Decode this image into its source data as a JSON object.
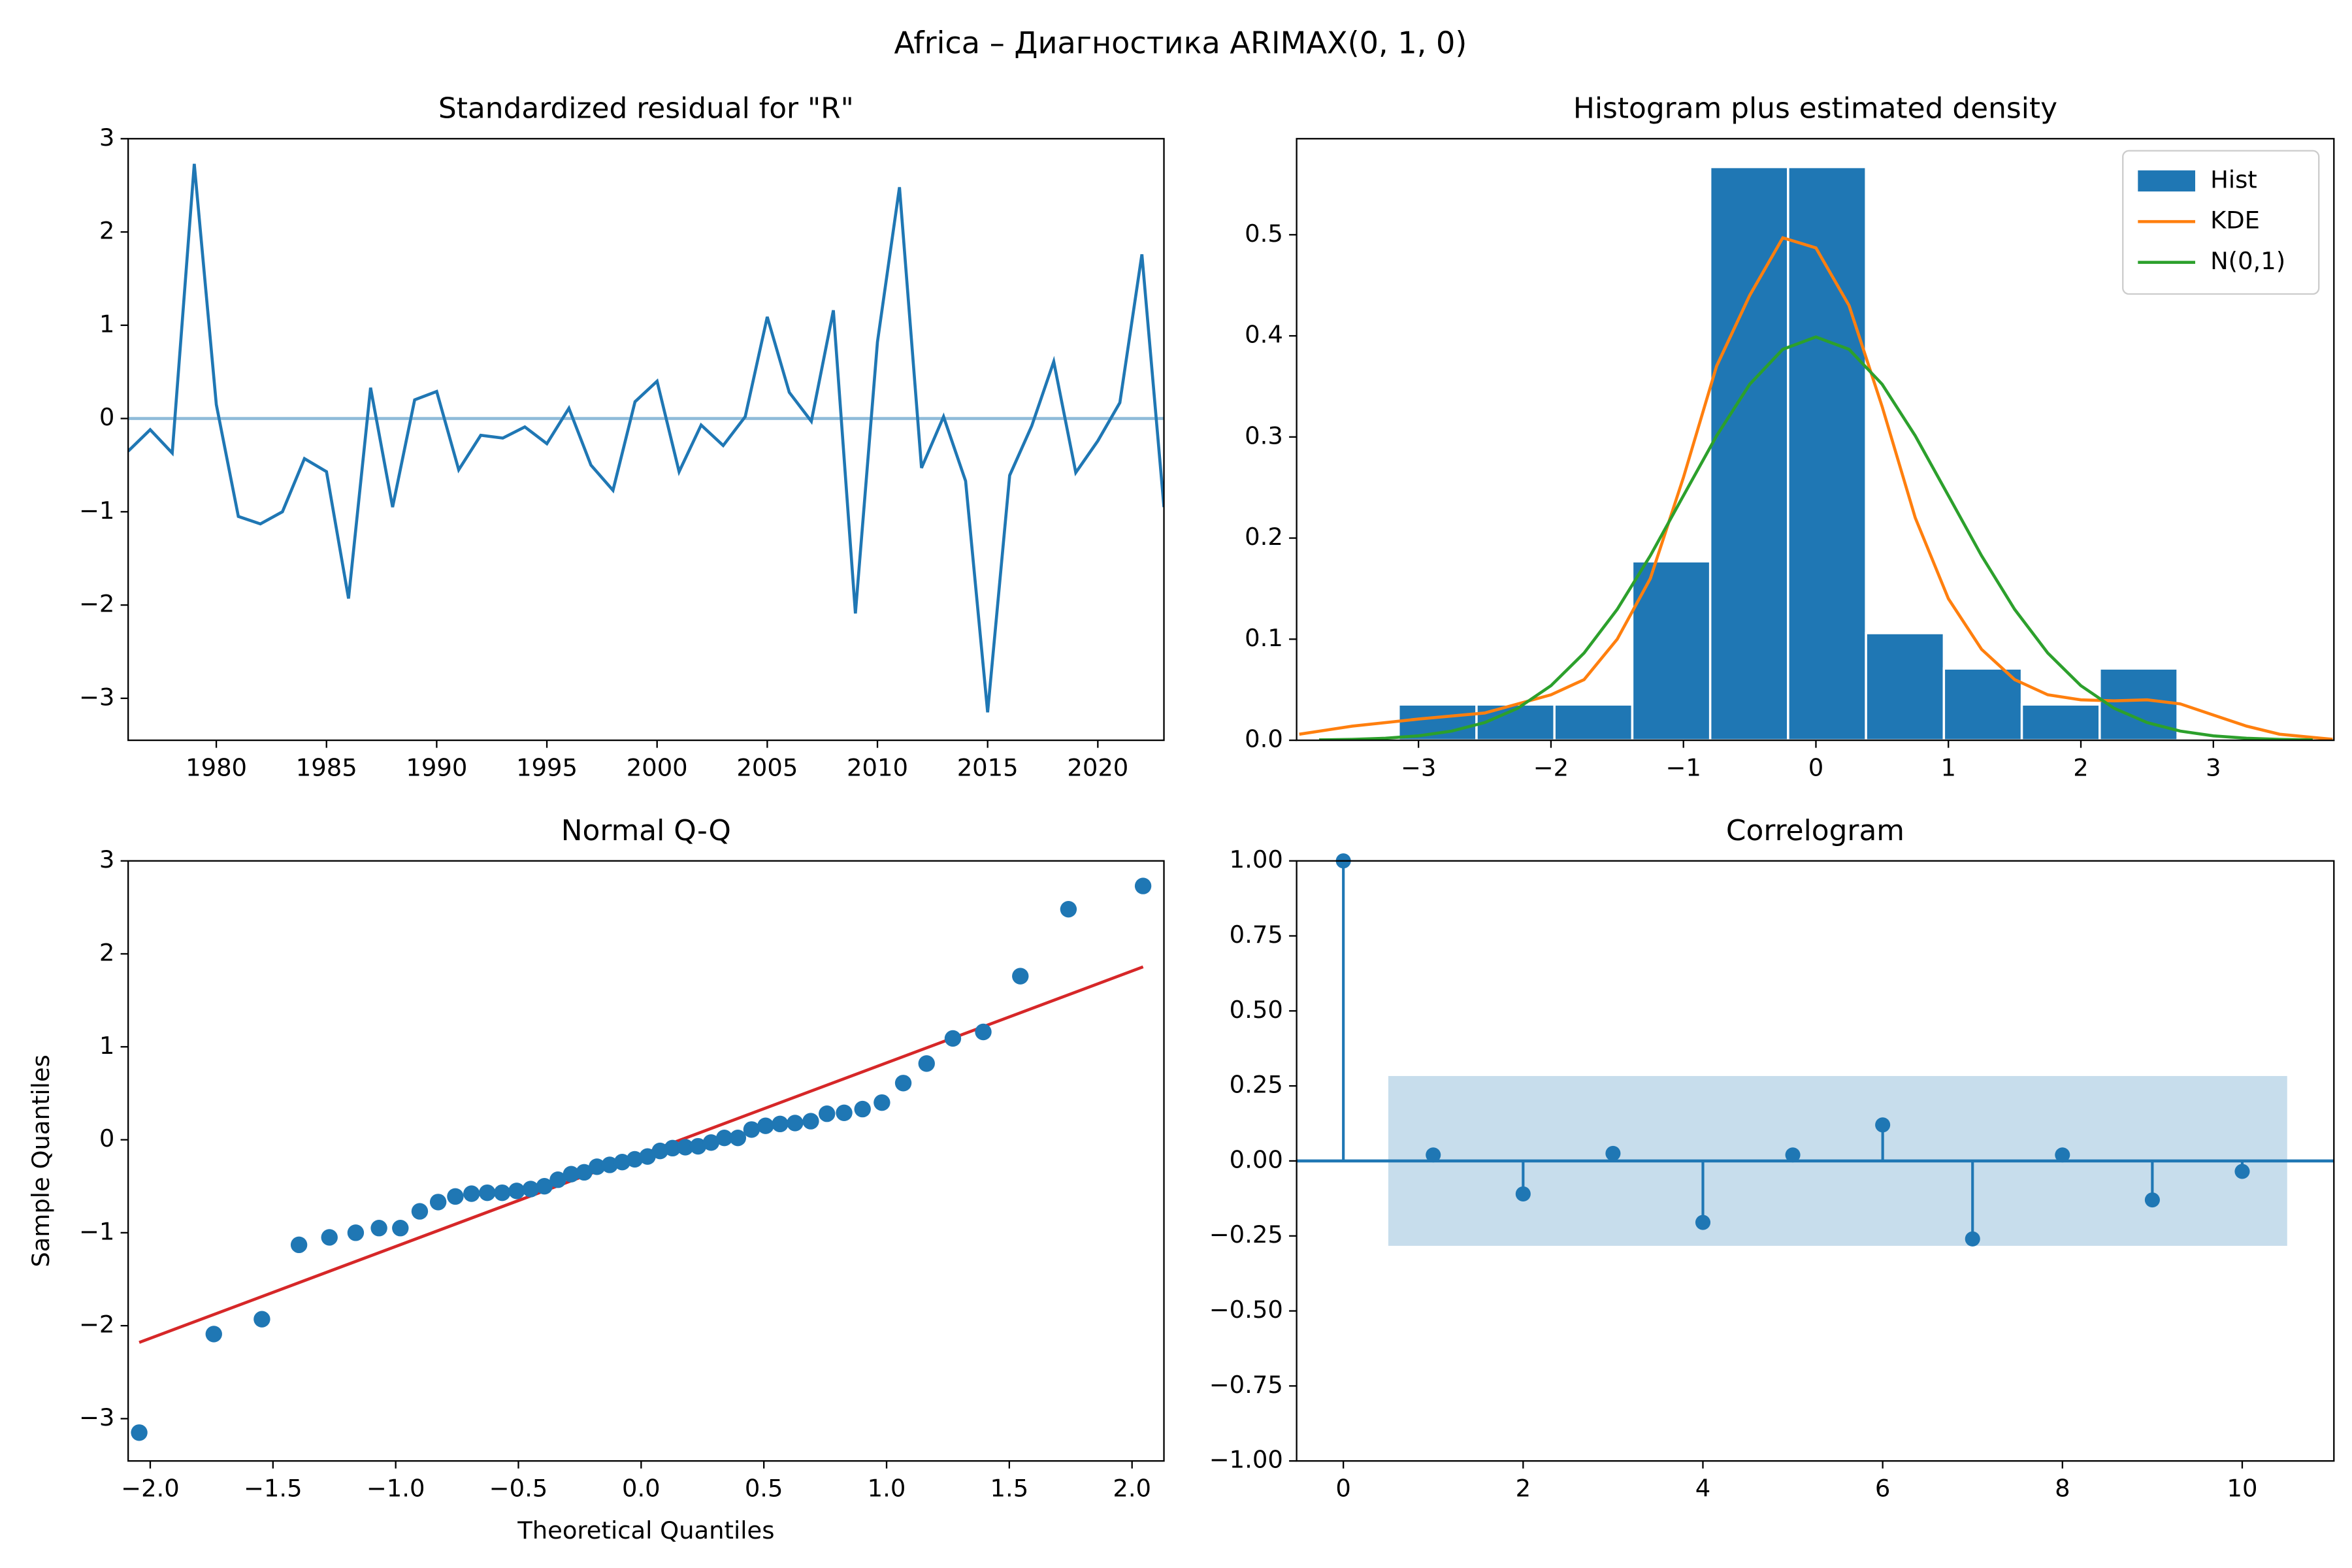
{
  "suptitle": "Africa – Диагностика ARIMAX(0, 1, 0)",
  "chart_data": [
    {
      "type": "line",
      "title": "Standardized residual for \"R\"",
      "x": [
        1976,
        1977,
        1978,
        1979,
        1980,
        1981,
        1982,
        1983,
        1984,
        1985,
        1986,
        1987,
        1988,
        1989,
        1990,
        1991,
        1992,
        1993,
        1994,
        1995,
        1996,
        1997,
        1998,
        1999,
        2000,
        2001,
        2002,
        2003,
        2004,
        2005,
        2006,
        2007,
        2008,
        2009,
        2010,
        2011,
        2012,
        2013,
        2014,
        2015,
        2016,
        2017,
        2018,
        2019,
        2020,
        2021,
        2022,
        2023
      ],
      "values": [
        -0.35,
        -0.12,
        -0.37,
        2.73,
        0.15,
        -1.05,
        -1.13,
        -1.0,
        -0.43,
        -0.57,
        -1.93,
        0.33,
        -0.95,
        0.2,
        0.29,
        -0.55,
        -0.18,
        -0.21,
        -0.09,
        -0.27,
        0.11,
        -0.5,
        -0.77,
        0.18,
        0.4,
        -0.57,
        -0.07,
        -0.29,
        0.02,
        1.09,
        0.28,
        -0.03,
        1.16,
        -2.09,
        0.82,
        2.48,
        -0.53,
        0.02,
        -0.67,
        -3.15,
        -0.61,
        -0.08,
        0.61,
        -0.58,
        -0.24,
        0.17,
        1.76,
        -0.95
      ],
      "color": "#1f77b4",
      "reference_line": 0,
      "xlim": [
        1976,
        2023
      ],
      "xticks": [
        1980,
        1985,
        1990,
        1995,
        2000,
        2005,
        2010,
        2015,
        2020
      ],
      "ylim": [
        -3.45,
        3.0
      ],
      "yticks": [
        {
          "value": -3,
          "label": "−3"
        },
        {
          "value": -2,
          "label": "−2"
        },
        {
          "value": -1,
          "label": "−1"
        },
        0,
        1,
        2,
        3
      ]
    },
    {
      "type": "histogram",
      "title": "Histogram plus estimated density",
      "name": "Hist",
      "bins": [
        -3.15,
        -2.562,
        -1.974,
        -1.386,
        -0.798,
        -0.21,
        0.378,
        0.966,
        1.554,
        2.142,
        2.73
      ],
      "values": [
        0.0354,
        0.0354,
        0.0354,
        0.177,
        0.567,
        0.567,
        0.106,
        0.071,
        0.0354,
        0.071
      ],
      "color": "#1f77b4",
      "series": [
        {
          "name": "KDE",
          "color": "#ff7f0e",
          "x": [
            -3.9,
            -3.5,
            -3,
            -2.5,
            -2,
            -1.75,
            -1.5,
            -1.25,
            -1,
            -0.75,
            -0.5,
            -0.25,
            0,
            0.25,
            0.5,
            0.75,
            1,
            1.25,
            1.5,
            1.75,
            2,
            2.25,
            2.5,
            2.75,
            3,
            3.25,
            3.5,
            3.9
          ],
          "values": [
            0.006,
            0.014,
            0.021,
            0.027,
            0.045,
            0.06,
            0.1,
            0.16,
            0.26,
            0.37,
            0.44,
            0.497,
            0.487,
            0.43,
            0.33,
            0.22,
            0.14,
            0.09,
            0.06,
            0.045,
            0.04,
            0.039,
            0.04,
            0.036,
            0.025,
            0.014,
            0.006,
            0.001
          ]
        },
        {
          "name": "N(0,1)",
          "color": "#2ca02c",
          "x": [
            -3.75,
            -3.5,
            -3.25,
            -3,
            -2.75,
            -2.5,
            -2.25,
            -2,
            -1.75,
            -1.5,
            -1.25,
            -1,
            -0.75,
            -0.5,
            -0.25,
            0,
            0.25,
            0.5,
            0.75,
            1,
            1.25,
            1.5,
            1.75,
            2,
            2.25,
            2.5,
            2.75,
            3,
            3.25,
            3.5,
            3.75
          ],
          "values": [
            0.0004,
            0.0009,
            0.002,
            0.0044,
            0.0091,
            0.0175,
            0.0317,
            0.054,
            0.0863,
            0.1295,
            0.1826,
            0.242,
            0.3011,
            0.3521,
            0.3867,
            0.3989,
            0.3867,
            0.3521,
            0.3011,
            0.242,
            0.1826,
            0.1295,
            0.0863,
            0.054,
            0.0317,
            0.0175,
            0.0091,
            0.0044,
            0.002,
            0.0009,
            0.0004
          ]
        }
      ],
      "legend": "upper right",
      "xlim": [
        -3.92,
        3.91
      ],
      "xticks": [
        {
          "value": -3,
          "label": "−3"
        },
        {
          "value": -2,
          "label": "−2"
        },
        {
          "value": -1,
          "label": "−1"
        },
        0,
        1,
        2,
        3
      ],
      "ylim": [
        0,
        0.595
      ],
      "yticks": [
        {
          "value": 0,
          "label": "0.0"
        },
        0.1,
        0.2,
        0.3,
        0.4,
        0.5
      ]
    },
    {
      "type": "scatter",
      "title": "Normal Q-Q",
      "xlabel": "Theoretical Quantiles",
      "ylabel": "Sample Quantiles",
      "x": [
        -2.045,
        -1.741,
        -1.545,
        -1.394,
        -1.27,
        -1.163,
        -1.068,
        -0.981,
        -0.902,
        -0.827,
        -0.757,
        -0.691,
        -0.627,
        -0.566,
        -0.507,
        -0.45,
        -0.394,
        -0.339,
        -0.285,
        -0.232,
        -0.18,
        -0.128,
        -0.077,
        -0.026,
        0.026,
        0.077,
        0.128,
        0.18,
        0.232,
        0.285,
        0.339,
        0.394,
        0.45,
        0.507,
        0.566,
        0.627,
        0.691,
        0.757,
        0.827,
        0.902,
        0.981,
        1.068,
        1.163,
        1.27,
        1.394,
        1.545,
        1.741,
        2.045
      ],
      "values": [
        -3.15,
        -2.09,
        -1.93,
        -1.13,
        -1.05,
        -1.0,
        -0.95,
        -0.95,
        -0.77,
        -0.67,
        -0.61,
        -0.58,
        -0.57,
        -0.57,
        -0.55,
        -0.53,
        -0.5,
        -0.43,
        -0.37,
        -0.35,
        -0.29,
        -0.27,
        -0.24,
        -0.21,
        -0.18,
        -0.12,
        -0.09,
        -0.08,
        -0.07,
        -0.03,
        0.02,
        0.02,
        0.11,
        0.15,
        0.17,
        0.18,
        0.2,
        0.28,
        0.29,
        0.33,
        0.4,
        0.61,
        0.82,
        1.09,
        1.16,
        1.76,
        2.48,
        2.73
      ],
      "color": "#1f77b4",
      "fit_line": {
        "x": [
          -2.045,
          2.045
        ],
        "values": [
          -2.18,
          1.86
        ],
        "color": "#d62728"
      },
      "xlim": [
        -2.09,
        2.13
      ],
      "xticks": [
        {
          "value": -2,
          "label": "−2.0"
        },
        {
          "value": -1.5,
          "label": "−1.5"
        },
        {
          "value": -1,
          "label": "−1.0"
        },
        {
          "value": -0.5,
          "label": "−0.5"
        },
        {
          "value": 0,
          "label": "0.0"
        },
        0.5,
        {
          "value": 1,
          "label": "1.0"
        },
        1.5,
        {
          "value": 2,
          "label": "2.0"
        }
      ],
      "ylim": [
        -3.455,
        3.0
      ],
      "yticks": [
        {
          "value": -3,
          "label": "−3"
        },
        {
          "value": -2,
          "label": "−2"
        },
        {
          "value": -1,
          "label": "−1"
        },
        0,
        1,
        2,
        3
      ]
    },
    {
      "type": "stem",
      "title": "Correlogram",
      "x": [
        0,
        1,
        2,
        3,
        4,
        5,
        6,
        7,
        8,
        9,
        10
      ],
      "values": [
        1.0,
        0.02,
        -0.11,
        0.025,
        -0.205,
        0.02,
        0.12,
        -0.26,
        0.02,
        -0.13,
        -0.035
      ],
      "color": "#1f77b4",
      "confint": [
        -0.283,
        0.283
      ],
      "confint_x": [
        0.5,
        10.5
      ],
      "xlim": [
        -0.52,
        11.02
      ],
      "xticks": [
        0,
        2,
        4,
        6,
        8,
        10
      ],
      "ylim": [
        -1,
        1
      ],
      "yticks": [
        {
          "value": -1,
          "label": "−1.00"
        },
        {
          "value": -0.75,
          "label": "−0.75"
        },
        {
          "value": -0.5,
          "label": "−0.50"
        },
        {
          "value": -0.25,
          "label": "−0.25"
        },
        {
          "value": 0,
          "label": "0.00"
        },
        0.25,
        {
          "value": 0.5,
          "label": "0.50"
        },
        0.75,
        {
          "value": 1,
          "label": "1.00"
        }
      ]
    }
  ]
}
